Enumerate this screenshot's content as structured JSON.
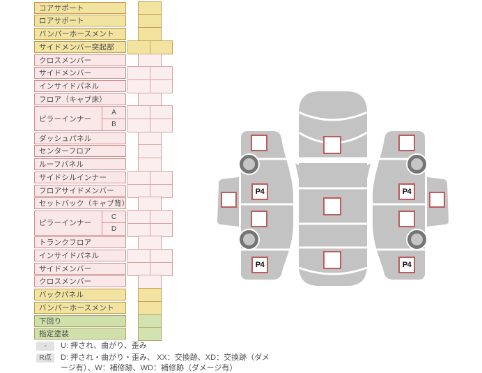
{
  "table": {
    "rows": [
      {
        "label": "コアサポート",
        "color": "yellow",
        "cells": "single"
      },
      {
        "label": "ロアサポート",
        "color": "yellow",
        "cells": "single"
      },
      {
        "label": "バンパーホースメント",
        "color": "yellow",
        "cells": "single"
      },
      {
        "label": "サイドメンバー突起部",
        "color": "yellow",
        "cells": "double"
      },
      {
        "label": "クロスメンバー",
        "color": "pink",
        "cells": "single"
      },
      {
        "label": "サイドメンバー",
        "color": "pink",
        "cells": "double"
      },
      {
        "label": "インサイドパネル",
        "color": "pink",
        "cells": "double"
      },
      {
        "label": "フロア（キャブ床）",
        "color": "pink",
        "cells": "single"
      },
      {
        "label": "ピラーインナー",
        "color": "pink",
        "cells": "double",
        "subs": [
          "A",
          "B"
        ]
      },
      {
        "label": "ダッシュパネル",
        "color": "pink",
        "cells": "single"
      },
      {
        "label": "センターフロア",
        "color": "pink",
        "cells": "single"
      },
      {
        "label": "ルーフパネル",
        "color": "pink",
        "cells": "single"
      },
      {
        "label": "サイドシルインナー",
        "color": "pink",
        "cells": "double"
      },
      {
        "label": "フロアサイドメンバー",
        "color": "pink",
        "cells": "double"
      },
      {
        "label": "セットバック（キャブ背）",
        "color": "pink",
        "cells": "single"
      },
      {
        "label": "ピラーインナー",
        "color": "pink",
        "cells": "double",
        "subs": [
          "C",
          "D"
        ]
      },
      {
        "label": "トランクフロア",
        "color": "pink",
        "cells": "single"
      },
      {
        "label": "インサイドパネル",
        "color": "pink",
        "cells": "double"
      },
      {
        "label": "サイドメンバー",
        "color": "pink",
        "cells": "double"
      },
      {
        "label": "クロスメンバー",
        "color": "pink",
        "cells": "single"
      },
      {
        "label": "バックパネル",
        "color": "yellow",
        "cells": "single"
      },
      {
        "label": "バンパーホースメント",
        "color": "yellow",
        "cells": "single"
      },
      {
        "label": "下回り",
        "color": "green",
        "cells": "single"
      },
      {
        "label": "指定塗装",
        "color": "green",
        "cells": "single"
      }
    ]
  },
  "legend": {
    "rows": [
      {
        "badge": "-",
        "text": "U: 押され、曲がり、歪み"
      },
      {
        "badge": "R点",
        "text": "D: 押され・曲がり・歪み、 XX：交換跡、XD：交換跡（ダメージ有）、W：補修跡、WD：補修跡（ダメージ有）"
      }
    ]
  },
  "diagram": {
    "left_side": {
      "front_p4": "P4",
      "rear_p4": "P4"
    },
    "right_side": {
      "front_p4": "P4",
      "rear_p4": "P4"
    }
  },
  "colors": {
    "row_yellow": "#f2e3a1",
    "row_pink": "#fae7e7",
    "row_green": "#cfe0ab",
    "yellow_border": "#bf9b4f",
    "pink_border": "#d18f8f",
    "green_border": "#b0a56b",
    "marker_border": "#bc5c5c",
    "car_gray": "#c3c3c3",
    "wheel_gray": "#757575"
  }
}
